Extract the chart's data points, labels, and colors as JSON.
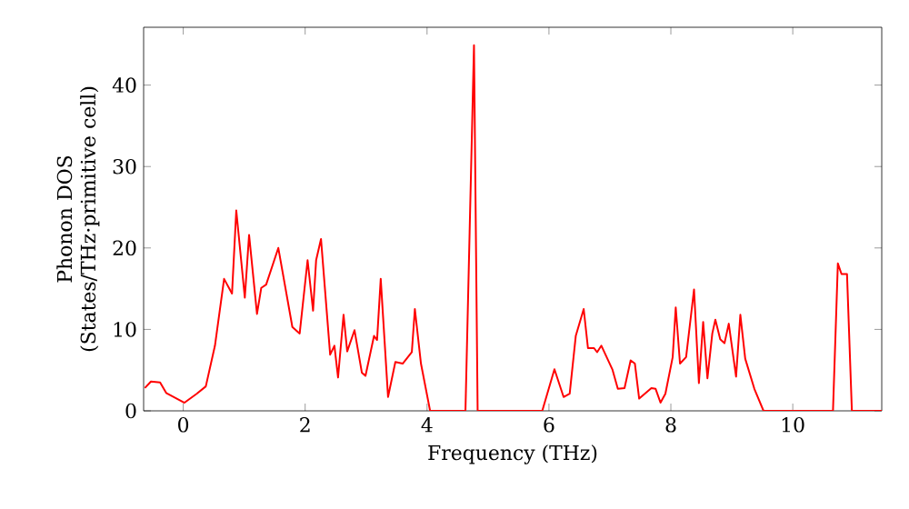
{
  "chart_data": {
    "type": "line",
    "xlabel": "Frequency (THz)",
    "ylabel": "Phonon DOS (States/THz·primitive cell)",
    "xlim": [
      -0.65,
      11.46
    ],
    "ylim": [
      0,
      47.1
    ],
    "xticks": [
      0,
      2,
      4,
      6,
      8,
      10
    ],
    "yticks": [
      0,
      10,
      20,
      30,
      40
    ],
    "grid": false,
    "marker": "none",
    "line_style": "solid",
    "series": [
      {
        "color": "#ff0000",
        "x": [
          -0.63,
          -0.53,
          -0.38,
          -0.28,
          0.02,
          0.22,
          0.37,
          0.52,
          0.67,
          0.8,
          0.87,
          1.01,
          1.08,
          1.21,
          1.28,
          1.36,
          1.56,
          1.79,
          1.91,
          2.04,
          2.13,
          2.18,
          2.26,
          2.41,
          2.48,
          2.54,
          2.63,
          2.69,
          2.81,
          2.93,
          2.99,
          3.13,
          3.18,
          3.24,
          3.36,
          3.48,
          3.6,
          3.75,
          3.8,
          3.9,
          4.05,
          4.63,
          4.77,
          4.83,
          5.89,
          6.09,
          6.24,
          6.34,
          6.44,
          6.57,
          6.64,
          6.74,
          6.79,
          6.86,
          7.04,
          7.13,
          7.24,
          7.34,
          7.41,
          7.48,
          7.68,
          7.75,
          7.83,
          7.91,
          8.03,
          8.08,
          8.15,
          8.25,
          8.38,
          8.46,
          8.53,
          8.6,
          8.68,
          8.73,
          8.81,
          8.88,
          8.95,
          9.07,
          9.14,
          9.22,
          9.37,
          9.52,
          10.66,
          10.74,
          10.8,
          10.89,
          10.97,
          11.46
        ],
        "values": [
          2.8,
          3.6,
          3.5,
          2.2,
          1.0,
          2.1,
          3.0,
          8.0,
          16.2,
          14.4,
          24.6,
          13.9,
          21.6,
          11.9,
          15.1,
          15.5,
          20.0,
          10.3,
          9.5,
          18.5,
          12.3,
          18.5,
          21.1,
          6.9,
          8.0,
          4.1,
          11.8,
          7.3,
          9.9,
          4.7,
          4.3,
          9.2,
          8.7,
          16.2,
          1.7,
          6.0,
          5.8,
          7.2,
          12.5,
          5.8,
          0,
          0,
          44.9,
          0,
          0,
          5.1,
          1.7,
          2.1,
          9.2,
          12.5,
          7.7,
          7.7,
          7.2,
          8.0,
          5.1,
          2.7,
          2.8,
          6.2,
          5.8,
          1.5,
          2.8,
          2.7,
          1.0,
          2.1,
          6.6,
          12.7,
          5.8,
          6.6,
          14.9,
          3.4,
          10.9,
          4.0,
          9.5,
          11.2,
          8.8,
          8.3,
          10.7,
          4.2,
          11.8,
          6.4,
          2.7,
          0,
          0,
          18.1,
          16.8,
          16.8,
          0,
          0
        ]
      }
    ]
  }
}
